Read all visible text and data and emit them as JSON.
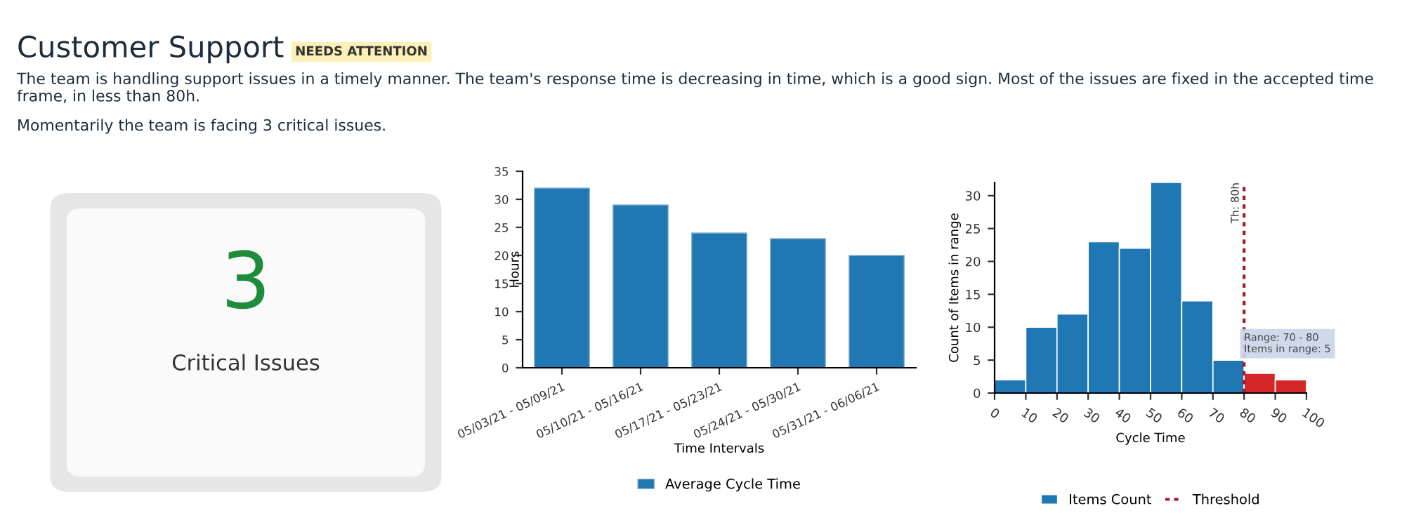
{
  "chart_data": [
    {
      "type": "other",
      "title": "Customer Support",
      "subtitle": "NEEDS ATTENTION",
      "annotations": [
        "The team is handling support issues in a timely manner. The team's response time is decreasing in time, which is a good sign. Most of the issues are fixed in the accepted time frame, in less than 80h.",
        "Momentarily the team is facing 3 critical issues."
      ]
    },
    {
      "type": "other",
      "categories": [
        "Critical Issues"
      ],
      "values": [
        3
      ],
      "data_labels": true
    },
    {
      "type": "bar",
      "categories": [
        "05/03/21 - 05/09/21",
        "05/10/21 - 05/16/21",
        "05/17/21 - 05/23/21",
        "05/24/21 - 05/30/21",
        "05/31/21 - 06/06/21"
      ],
      "series": [
        {
          "name": "Average Cycle Time",
          "color": "#1f77b4",
          "values": [
            32,
            29,
            24,
            23,
            20
          ]
        }
      ],
      "xlabel": "Time Intervals",
      "ylabel": "Hours",
      "ylim": [
        0,
        35
      ],
      "yticks": [
        0,
        5,
        10,
        15,
        20,
        25,
        30,
        35
      ],
      "grid": false,
      "legend": "bottom"
    },
    {
      "type": "histogram",
      "bins": [
        0,
        10,
        20,
        30,
        40,
        50,
        60,
        70,
        80,
        90,
        100
      ],
      "series": [
        {
          "name": "Items Count",
          "color": "#1f77b4",
          "values": [
            2,
            10,
            12,
            23,
            22,
            32,
            14,
            5,
            3,
            2
          ],
          "colors": [
            "#1f77b4",
            "#1f77b4",
            "#1f77b4",
            "#1f77b4",
            "#1f77b4",
            "#1f77b4",
            "#1f77b4",
            "#1f77b4",
            "#d62728",
            "#d62728"
          ]
        }
      ],
      "xlabel": "Cycle Time",
      "ylabel": "Count of Items in range",
      "xlim": [
        0,
        100
      ],
      "xticks": [
        0,
        10,
        20,
        30,
        40,
        50,
        60,
        70,
        80,
        90,
        100
      ],
      "ylim": [
        0,
        32
      ],
      "yticks": [
        0,
        5,
        10,
        15,
        20,
        25,
        30
      ],
      "grid": false,
      "legend": "bottom",
      "ref_lines": [
        {
          "axis": "x",
          "value": 80,
          "label": "Threshold",
          "color": "#a01c2c",
          "line_style": "dotted"
        }
      ],
      "annotations": [
        {
          "text": "Th: 80h",
          "x": 80,
          "y": 32
        },
        {
          "text": "Range: 70 - 80\nItems in range: 5",
          "x": 75,
          "y": 5
        }
      ]
    }
  ]
}
